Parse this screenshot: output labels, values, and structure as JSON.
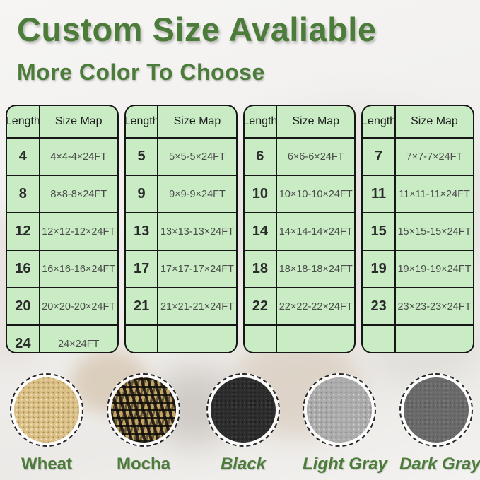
{
  "header": {
    "title": "Custom Size Avaliable",
    "subtitle": "More Color To Choose"
  },
  "tables": [
    {
      "headers": [
        "Length",
        "Size Map"
      ],
      "rows": [
        [
          "4",
          "4×4-4×24FT"
        ],
        [
          "8",
          "8×8-8×24FT"
        ],
        [
          "12",
          "12×12-12×24FT"
        ],
        [
          "16",
          "16×16-16×24FT"
        ],
        [
          "20",
          "20×20-20×24FT"
        ],
        [
          "24",
          "24×24FT"
        ]
      ]
    },
    {
      "headers": [
        "Length",
        "Size Map"
      ],
      "rows": [
        [
          "5",
          "5×5-5×24FT"
        ],
        [
          "9",
          "9×9-9×24FT"
        ],
        [
          "13",
          "13×13-13×24FT"
        ],
        [
          "17",
          "17×17-17×24FT"
        ],
        [
          "21",
          "21×21-21×24FT"
        ],
        [
          "",
          ""
        ]
      ]
    },
    {
      "headers": [
        "Length",
        "Size Map"
      ],
      "rows": [
        [
          "6",
          "6×6-6×24FT"
        ],
        [
          "10",
          "10×10-10×24FT"
        ],
        [
          "14",
          "14×14-14×24FT"
        ],
        [
          "18",
          "18×18-18×24FT"
        ],
        [
          "22",
          "22×22-22×24FT"
        ],
        [
          "",
          ""
        ]
      ]
    },
    {
      "headers": [
        "Length",
        "Size Map"
      ],
      "rows": [
        [
          "7",
          "7×7-7×24FT"
        ],
        [
          "11",
          "11×11-11×24FT"
        ],
        [
          "15",
          "15×15-15×24FT"
        ],
        [
          "19",
          "19×19-19×24FT"
        ],
        [
          "23",
          "23×23-23×24FT"
        ],
        [
          "",
          ""
        ]
      ]
    }
  ],
  "swatches": [
    {
      "id": "wheat",
      "label": "Wheat",
      "italic": false,
      "base_color": "#d9bf85"
    },
    {
      "id": "mocha",
      "label": "Mocha",
      "italic": false,
      "base_color": "#8a7340"
    },
    {
      "id": "black",
      "label": "Black",
      "italic": true,
      "base_color": "#2d2d2d"
    },
    {
      "id": "light-gray",
      "label": "Light Gray",
      "italic": true,
      "base_color": "#ababab"
    },
    {
      "id": "dark-gray",
      "label": "Dark Gray",
      "italic": true,
      "base_color": "#6a6a6a"
    }
  ],
  "colors": {
    "accent_green": "#4c7c3a",
    "table_fill": "#c9ecc5",
    "table_border": "#161616"
  }
}
